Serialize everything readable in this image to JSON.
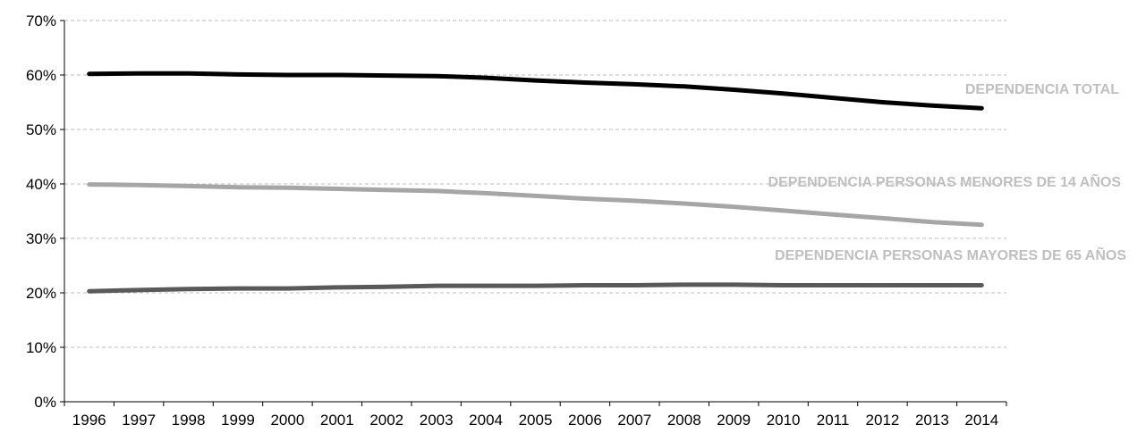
{
  "chart_data": {
    "type": "line",
    "title": "",
    "xlabel": "",
    "ylabel": "",
    "ylim": [
      0,
      70
    ],
    "y_tick_labels": [
      "0%",
      "10%",
      "20%",
      "30%",
      "40%",
      "50%",
      "60%",
      "70%"
    ],
    "y_tick_values": [
      0,
      10,
      20,
      30,
      40,
      50,
      60,
      70
    ],
    "grid": true,
    "legend": "inline labels at line ends",
    "categories": [
      "1996",
      "1997",
      "1998",
      "1999",
      "2000",
      "2001",
      "2002",
      "2003",
      "2004",
      "2005",
      "2006",
      "2007",
      "2008",
      "2009",
      "2010",
      "2011",
      "2012",
      "2013",
      "2014"
    ],
    "series": [
      {
        "name": "DEPENDENCIA TOTAL",
        "color": "#000000",
        "values": [
          60.2,
          60.3,
          60.3,
          60.1,
          60.0,
          60.0,
          59.9,
          59.8,
          59.5,
          59.0,
          58.6,
          58.3,
          57.9,
          57.3,
          56.6,
          55.8,
          55.0,
          54.4,
          53.9
        ]
      },
      {
        "name": "DEPENDENCIA PERSONAS MENORES DE 14 AÑOS",
        "color": "#a6a6a6",
        "values": [
          39.9,
          39.8,
          39.6,
          39.4,
          39.3,
          39.1,
          38.9,
          38.7,
          38.3,
          37.8,
          37.3,
          36.9,
          36.4,
          35.8,
          35.1,
          34.4,
          33.7,
          33.0,
          32.5
        ]
      },
      {
        "name": "DEPENDENCIA PERSONAS MAYORES DE 65 AÑOS",
        "color": "#595959",
        "values": [
          20.3,
          20.5,
          20.7,
          20.8,
          20.8,
          21.0,
          21.1,
          21.3,
          21.3,
          21.3,
          21.4,
          21.4,
          21.5,
          21.5,
          21.4,
          21.4,
          21.4,
          21.4,
          21.4
        ]
      }
    ]
  }
}
